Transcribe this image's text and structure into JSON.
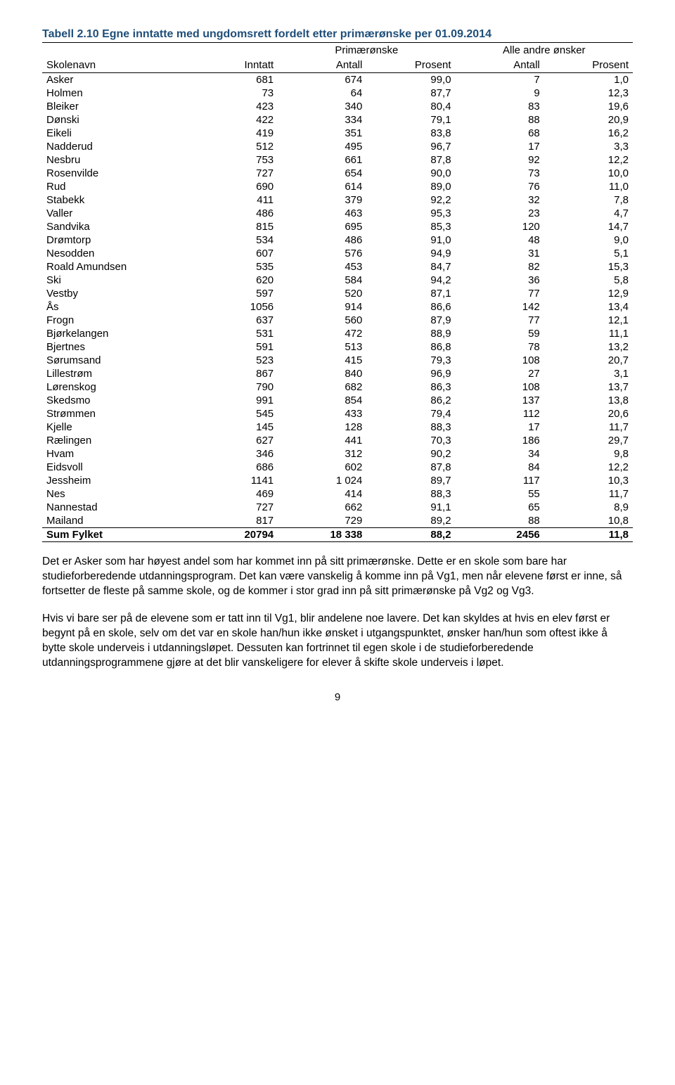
{
  "title": "Tabell 2.10  Egne inntatte med ungdomsrett fordelt etter primærønske per 01.09.2014",
  "group_headers": {
    "g1": "Primærønske",
    "g2": "Alle andre ønsker"
  },
  "columns": {
    "c0": "Skolenavn",
    "c1": "Inntatt",
    "c2": "Antall",
    "c3": "Prosent",
    "c4": "Antall",
    "c5": "Prosent"
  },
  "rows": [
    {
      "n": "Asker",
      "v": [
        "681",
        "674",
        "99,0",
        "7",
        "1,0"
      ]
    },
    {
      "n": "Holmen",
      "v": [
        "73",
        "64",
        "87,7",
        "9",
        "12,3"
      ]
    },
    {
      "n": "Bleiker",
      "v": [
        "423",
        "340",
        "80,4",
        "83",
        "19,6"
      ]
    },
    {
      "n": "Dønski",
      "v": [
        "422",
        "334",
        "79,1",
        "88",
        "20,9"
      ]
    },
    {
      "n": "Eikeli",
      "v": [
        "419",
        "351",
        "83,8",
        "68",
        "16,2"
      ]
    },
    {
      "n": "Nadderud",
      "v": [
        "512",
        "495",
        "96,7",
        "17",
        "3,3"
      ]
    },
    {
      "n": "Nesbru",
      "v": [
        "753",
        "661",
        "87,8",
        "92",
        "12,2"
      ]
    },
    {
      "n": "Rosenvilde",
      "v": [
        "727",
        "654",
        "90,0",
        "73",
        "10,0"
      ]
    },
    {
      "n": "Rud",
      "v": [
        "690",
        "614",
        "89,0",
        "76",
        "11,0"
      ]
    },
    {
      "n": "Stabekk",
      "v": [
        "411",
        "379",
        "92,2",
        "32",
        "7,8"
      ]
    },
    {
      "n": "Valler",
      "v": [
        "486",
        "463",
        "95,3",
        "23",
        "4,7"
      ]
    },
    {
      "n": "Sandvika",
      "v": [
        "815",
        "695",
        "85,3",
        "120",
        "14,7"
      ]
    },
    {
      "n": "Drømtorp",
      "v": [
        "534",
        "486",
        "91,0",
        "48",
        "9,0"
      ]
    },
    {
      "n": "Nesodden",
      "v": [
        "607",
        "576",
        "94,9",
        "31",
        "5,1"
      ]
    },
    {
      "n": "Roald Amundsen",
      "v": [
        "535",
        "453",
        "84,7",
        "82",
        "15,3"
      ]
    },
    {
      "n": "Ski",
      "v": [
        "620",
        "584",
        "94,2",
        "36",
        "5,8"
      ]
    },
    {
      "n": "Vestby",
      "v": [
        "597",
        "520",
        "87,1",
        "77",
        "12,9"
      ]
    },
    {
      "n": "Ås",
      "v": [
        "1056",
        "914",
        "86,6",
        "142",
        "13,4"
      ]
    },
    {
      "n": "Frogn",
      "v": [
        "637",
        "560",
        "87,9",
        "77",
        "12,1"
      ]
    },
    {
      "n": "Bjørkelangen",
      "v": [
        "531",
        "472",
        "88,9",
        "59",
        "11,1"
      ]
    },
    {
      "n": "Bjertnes",
      "v": [
        "591",
        "513",
        "86,8",
        "78",
        "13,2"
      ]
    },
    {
      "n": "Sørumsand",
      "v": [
        "523",
        "415",
        "79,3",
        "108",
        "20,7"
      ]
    },
    {
      "n": "Lillestrøm",
      "v": [
        "867",
        "840",
        "96,9",
        "27",
        "3,1"
      ]
    },
    {
      "n": "Lørenskog",
      "v": [
        "790",
        "682",
        "86,3",
        "108",
        "13,7"
      ]
    },
    {
      "n": "Skedsmo",
      "v": [
        "991",
        "854",
        "86,2",
        "137",
        "13,8"
      ]
    },
    {
      "n": "Strømmen",
      "v": [
        "545",
        "433",
        "79,4",
        "112",
        "20,6"
      ]
    },
    {
      "n": "Kjelle",
      "v": [
        "145",
        "128",
        "88,3",
        "17",
        "11,7"
      ]
    },
    {
      "n": "Rælingen",
      "v": [
        "627",
        "441",
        "70,3",
        "186",
        "29,7"
      ]
    },
    {
      "n": "Hvam",
      "v": [
        "346",
        "312",
        "90,2",
        "34",
        "9,8"
      ]
    },
    {
      "n": "Eidsvoll",
      "v": [
        "686",
        "602",
        "87,8",
        "84",
        "12,2"
      ]
    },
    {
      "n": "Jessheim",
      "v": [
        "1141",
        "1 024",
        "89,7",
        "117",
        "10,3"
      ]
    },
    {
      "n": "Nes",
      "v": [
        "469",
        "414",
        "88,3",
        "55",
        "11,7"
      ]
    },
    {
      "n": "Nannestad",
      "v": [
        "727",
        "662",
        "91,1",
        "65",
        "8,9"
      ]
    },
    {
      "n": "Mailand",
      "v": [
        "817",
        "729",
        "89,2",
        "88",
        "10,8"
      ]
    }
  ],
  "sum": {
    "n": "Sum Fylket",
    "v": [
      "20794",
      "18 338",
      "88,2",
      "2456",
      "11,8"
    ]
  },
  "para1": "Det er Asker som har høyest andel som har kommet inn på sitt primærønske. Dette er en skole som bare har studieforberedende utdanningsprogram. Det kan være vanskelig å komme inn på Vg1, men når elevene først er inne, så fortsetter de fleste på samme skole, og de kommer i stor grad inn på sitt primærønske på Vg2 og Vg3.",
  "para2": "Hvis vi bare ser på de elevene som er tatt inn til Vg1, blir andelene noe lavere. Det kan skyldes at hvis en elev først er begynt på en skole, selv om det var en skole han/hun ikke ønsket i utgangspunktet, ønsker han/hun som oftest ikke å bytte skole underveis i utdanningsløpet. Dessuten kan fortrinnet til egen skole i de studieforberedende utdanningsprogrammene gjøre at det blir vanskeligere for elever å skifte skole underveis i løpet.",
  "page": "9"
}
